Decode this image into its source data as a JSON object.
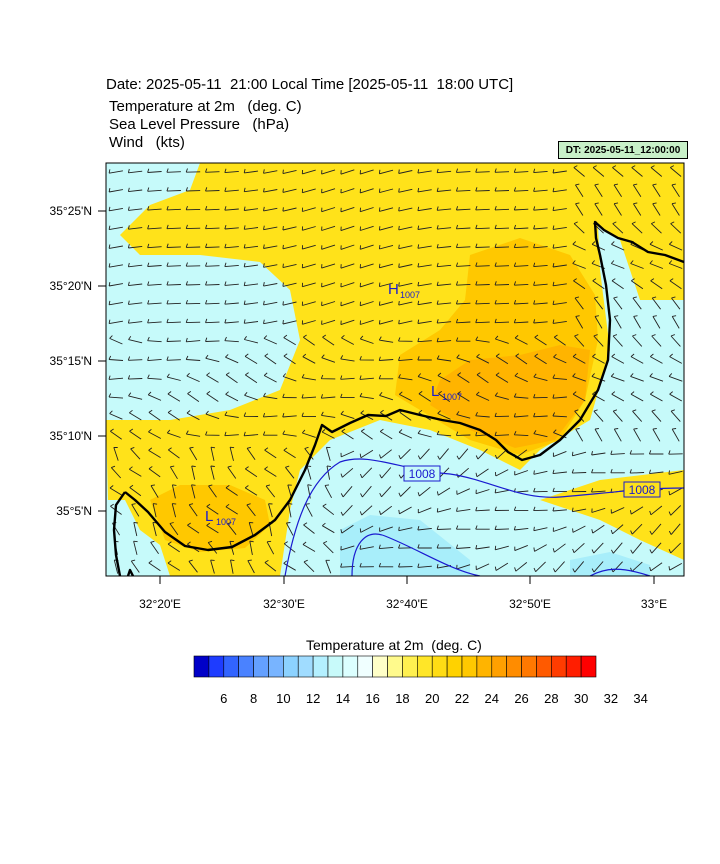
{
  "header": {
    "date_line": "Date: 2025-05-11  21:00 Local Time [2025-05-11  18:00 UTC]",
    "variables": [
      "Temperature at 2m   (deg. C)",
      "Sea Level Pressure   (hPa)",
      "Wind   (kts)"
    ],
    "dt_badge": "DT: 2025-05-11_12:00:00",
    "dt_badge_color": "#c8f0c8"
  },
  "map": {
    "lat_labels": [
      "35°25'N",
      "35°20'N",
      "35°15'N",
      "35°10'N",
      "35°5'N"
    ],
    "lon_labels": [
      "32°20'E",
      "32°30'E",
      "32°40'E",
      "32°50'E",
      "33°E"
    ],
    "pressure_labels": [
      {
        "kind": "H",
        "sub": "1007"
      },
      {
        "kind": "L",
        "sub": "1007"
      },
      {
        "kind": "L",
        "sub": "1007"
      }
    ],
    "isobar_labels": [
      "1008",
      "1008"
    ],
    "colors": {
      "isobar": "#1a1ad0",
      "coastline": "#000000",
      "warm": "#ffe21a",
      "cool": "#c6fafa"
    }
  },
  "colorbar": {
    "title": "Temperature at 2m  (deg. C)",
    "tick_labels": [
      "6",
      "8",
      "10",
      "12",
      "14",
      "16",
      "18",
      "20",
      "22",
      "24",
      "26",
      "28",
      "30",
      "32",
      "34"
    ],
    "colors": [
      "#0000c8",
      "#1e3cff",
      "#3264ff",
      "#4a82ff",
      "#64a0ff",
      "#78b4ff",
      "#8cd2ff",
      "#a0dcff",
      "#b4f0ff",
      "#c8fafa",
      "#dcffff",
      "#f0ffff",
      "#ffffc8",
      "#fffa8c",
      "#fff050",
      "#ffe628",
      "#ffdc14",
      "#ffd200",
      "#ffc800",
      "#ffb400",
      "#ffa000",
      "#ff8c00",
      "#ff7800",
      "#ff5a00",
      "#ff3c00",
      "#ff1e00",
      "#ff0000"
    ]
  }
}
